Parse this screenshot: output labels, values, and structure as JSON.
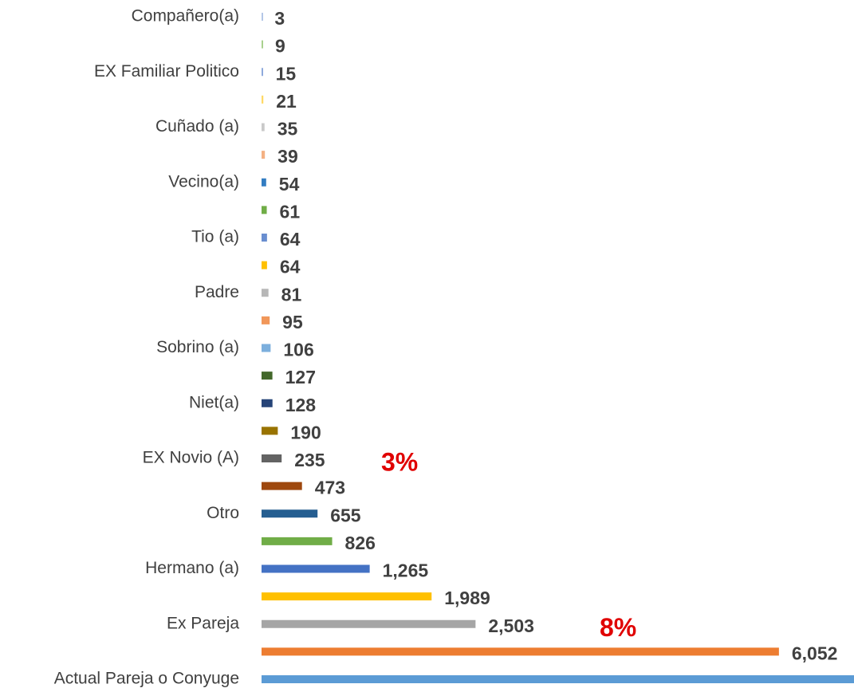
{
  "chart_data": {
    "type": "barh",
    "categories": [
      "Compañero(a)",
      null,
      "EX Familiar Politico",
      null,
      "Cuñado (a)",
      null,
      "Vecino(a)",
      null,
      "Tio (a)",
      null,
      "Padre",
      null,
      "Sobrino (a)",
      null,
      "Niet(a)",
      null,
      "EX Novio (A)",
      null,
      "Otro",
      null,
      "Hermano (a)",
      null,
      "Ex Pareja",
      null,
      "Actual Pareja o Conyuge"
    ],
    "values": [
      3,
      9,
      15,
      21,
      35,
      39,
      54,
      61,
      64,
      64,
      81,
      95,
      106,
      127,
      128,
      190,
      235,
      473,
      655,
      826,
      1265,
      1989,
      2503,
      6052,
      6930
    ],
    "value_labels": [
      "3",
      "9",
      "15",
      "21",
      "35",
      "39",
      "54",
      "61",
      "64",
      "64",
      "81",
      "95",
      "106",
      "127",
      "128",
      "190",
      "235",
      "473",
      "655",
      "826",
      "1,265",
      "1,989",
      "2,503",
      "6,052",
      null
    ],
    "colors": [
      "#b4c7e7",
      "#a9d18e",
      "#8faadc",
      "#ffd966",
      "#c9c9c9",
      "#f4b183",
      "#327dc2",
      "#70ad47",
      "#698ed0",
      "#ffc000",
      "#b7b7b7",
      "#f1975a",
      "#7cafdd",
      "#43682b",
      "#264478",
      "#997300",
      "#636363",
      "#9e480e",
      "#255e91",
      "#70ad47",
      "#4472c4",
      "#ffc000",
      "#a5a5a5",
      "#ed7d31",
      "#5b9bd5"
    ],
    "xlim": [
      0,
      6930
    ],
    "annotations": [
      {
        "text": "3%",
        "row": 16
      },
      {
        "text": "8%",
        "row": 22
      }
    ]
  }
}
